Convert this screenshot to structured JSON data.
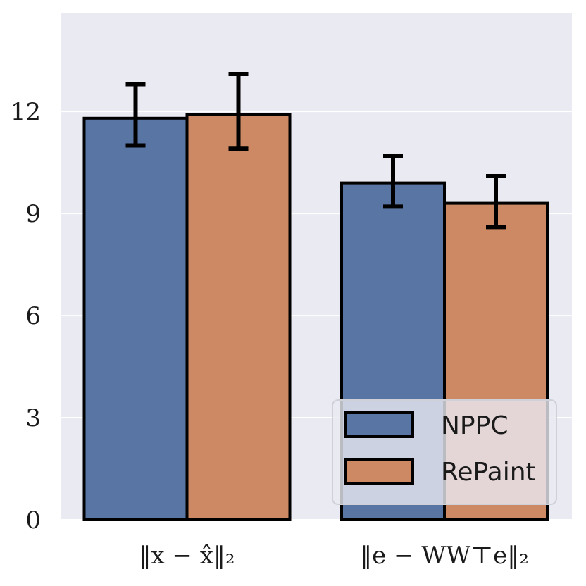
{
  "chart_data": {
    "type": "bar",
    "categories": [
      "‖x − x̂‖₂",
      "‖e − WW⊤e‖₂"
    ],
    "series": [
      {
        "name": "NPPC",
        "color": "#5975a4",
        "values": [
          11.8,
          9.9
        ],
        "error_low": [
          11.0,
          9.2
        ],
        "error_high": [
          12.8,
          10.7
        ]
      },
      {
        "name": "RePaint",
        "color": "#cc8963",
        "values": [
          11.9,
          9.3
        ],
        "error_low": [
          10.9,
          8.6
        ],
        "error_high": [
          13.1,
          10.1
        ]
      }
    ],
    "yticks": [
      "0",
      "3",
      "6",
      "9",
      "12"
    ],
    "ylim": [
      0,
      14.9
    ],
    "title": "",
    "xlabel": "",
    "ylabel": "",
    "grid": "horizontal",
    "legend_position": "lower-right",
    "background": "#eaeaf2"
  }
}
